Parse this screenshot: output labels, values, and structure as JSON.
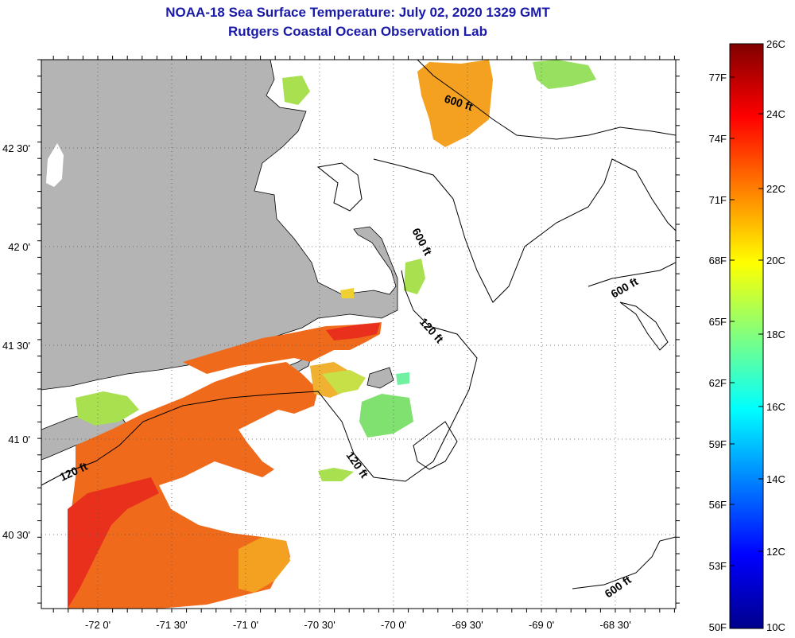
{
  "title": "NOAA-18 Sea Surface Temperature:  July 02, 2020 1329 GMT",
  "subtitle": "Rutgers Coastal Ocean Observation Lab",
  "axes": {
    "lon_ticks": [
      "-72 0'",
      "-71 30'",
      "-71 0'",
      "-70 30'",
      "-70 0'",
      "-69 30'",
      "-69 0'",
      "-68 30'"
    ],
    "lat_ticks": [
      "42 30'",
      "42 0'",
      "41 30'",
      "41 0'",
      "40 30'"
    ]
  },
  "contour_labels": [
    "600 ft",
    "600 ft",
    "600 ft",
    "600 ft",
    "120 ft",
    "120 ft",
    "120 ft"
  ],
  "colorbar": {
    "fahrenheit": [
      "77F",
      "74F",
      "71F",
      "68F",
      "65F",
      "62F",
      "59F",
      "56F",
      "53F",
      "50F"
    ],
    "celsius": [
      "26C",
      "24C",
      "22C",
      "20C",
      "18C",
      "16C",
      "14C",
      "12C",
      "10C"
    ],
    "range_c": [
      10,
      26
    ],
    "colors": [
      "#00008c",
      "#0000ff",
      "#0080ff",
      "#00ffff",
      "#80ff80",
      "#ffff00",
      "#ff8000",
      "#ff0000",
      "#800000"
    ]
  },
  "palette": {
    "land": "#b4b4b4",
    "sst_warm": "#f06a1c",
    "sst_hot": "#e8301c",
    "sst_orange": "#f4a020",
    "sst_green": "#a8e050",
    "sst_cyan": "#70f0a0"
  }
}
